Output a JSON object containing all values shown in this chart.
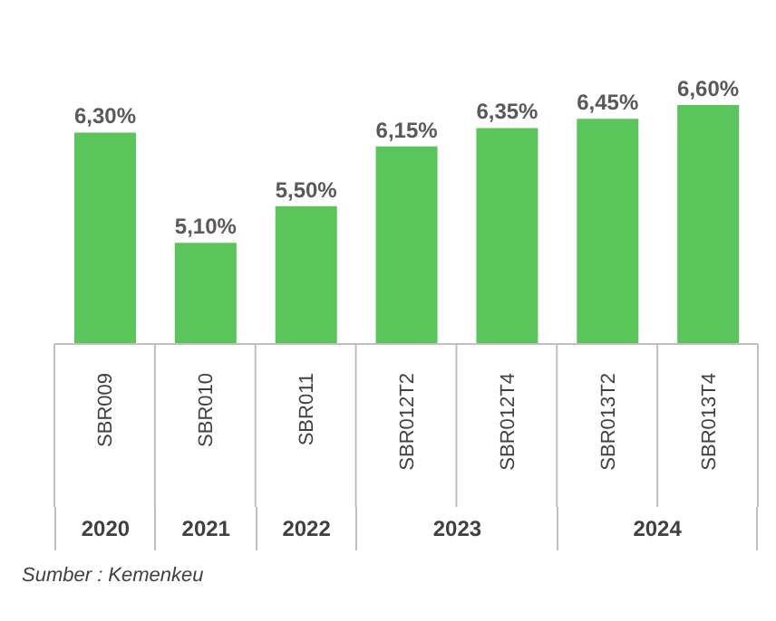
{
  "chart_data": {
    "type": "bar",
    "categories": [
      "SBR009",
      "SBR010",
      "SBR011",
      "SBR012T2",
      "SBR012T4",
      "SBR013T2",
      "SBR013T4"
    ],
    "values": [
      6.3,
      5.1,
      5.5,
      6.15,
      6.35,
      6.45,
      6.6
    ],
    "value_labels": [
      "6,30%",
      "5,10%",
      "5,50%",
      "6,15%",
      "6,35%",
      "6,45%",
      "6,60%"
    ],
    "color": "#5ac55a",
    "ylim": [
      4,
      6.6
    ],
    "tick_labels": "x",
    "grid": false,
    "legend": false,
    "annotations": [
      "2020",
      "2021",
      "2022",
      "2023",
      "2024",
      "Sumber : Kemenkeu"
    ]
  }
}
